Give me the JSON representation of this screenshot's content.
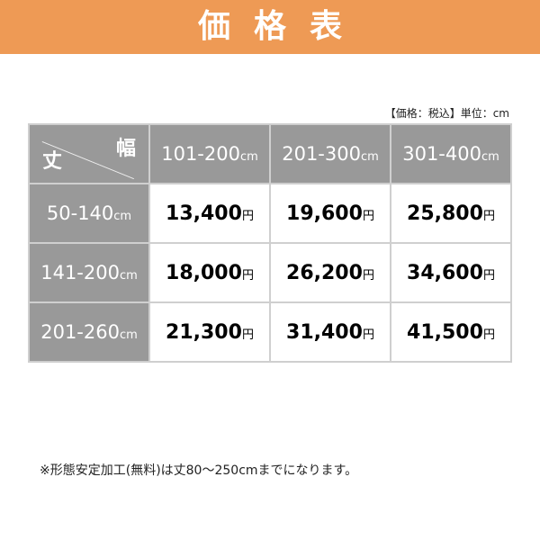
{
  "banner": {
    "title": "価格表"
  },
  "unit_note": "【価格：税込】単位：cm",
  "table": {
    "corner": {
      "row_axis": "丈",
      "col_axis": "幅"
    },
    "unit": "cm",
    "currency": "円",
    "columns": [
      "101-200",
      "201-300",
      "301-400"
    ],
    "rows": [
      {
        "label": "50-140",
        "prices": [
          "13,400",
          "19,600",
          "25,800"
        ]
      },
      {
        "label": "141-200",
        "prices": [
          "18,000",
          "26,200",
          "34,600"
        ]
      },
      {
        "label": "201-260",
        "prices": [
          "21,300",
          "31,400",
          "41,500"
        ]
      }
    ]
  },
  "footnote": "※形態安定加工(無料)は丈80〜250cmまでになります。",
  "colors": {
    "banner": "#EE9A55",
    "header_cell": "#999999"
  }
}
